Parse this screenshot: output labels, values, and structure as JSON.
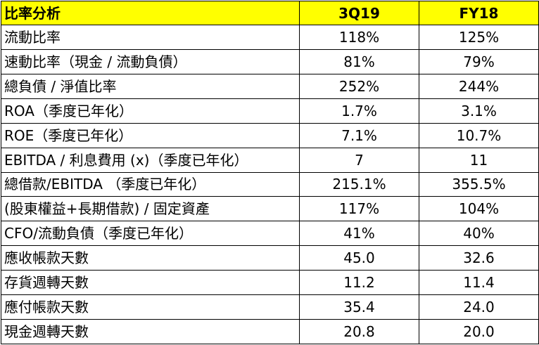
{
  "table": {
    "header": {
      "label": "比率分析",
      "col1": "3Q19",
      "col2": "FY18"
    },
    "rows": [
      {
        "label": "流動比率",
        "v1": "118%",
        "v2": "125%"
      },
      {
        "label": "速動比率（現金 / 流動負債）",
        "v1": "81%",
        "v2": "79%"
      },
      {
        "label": "總負債 / 淨值比率",
        "v1": "252%",
        "v2": "244%"
      },
      {
        "label": "ROA（季度已年化）",
        "v1": "1.7%",
        "v2": "3.1%"
      },
      {
        "label": "ROE（季度已年化）",
        "v1": "7.1%",
        "v2": "10.7%"
      },
      {
        "label": "EBITDA / 利息費用 (x)（季度已年化）",
        "v1": "7",
        "v2": "11"
      },
      {
        "label": "總借款/EBITDA （季度已年化）",
        "v1": "215.1%",
        "v2": "355.5%"
      },
      {
        "label": "(股東權益+長期借款) / 固定資產",
        "v1": "117%",
        "v2": "104%"
      },
      {
        "label": "CFO/流動負債（季度已年化）",
        "v1": "41%",
        "v2": "40%"
      },
      {
        "label": "應收帳款天數",
        "v1": "45.0",
        "v2": "32.6"
      },
      {
        "label": "存貨週轉天數",
        "v1": "11.2",
        "v2": "11.4"
      },
      {
        "label": "應付帳款天數",
        "v1": "35.4",
        "v2": "24.0"
      },
      {
        "label": "現金週轉天數",
        "v1": "20.8",
        "v2": "20.0"
      }
    ]
  },
  "colors": {
    "header_bg": "#ffff00",
    "border": "#000000"
  }
}
